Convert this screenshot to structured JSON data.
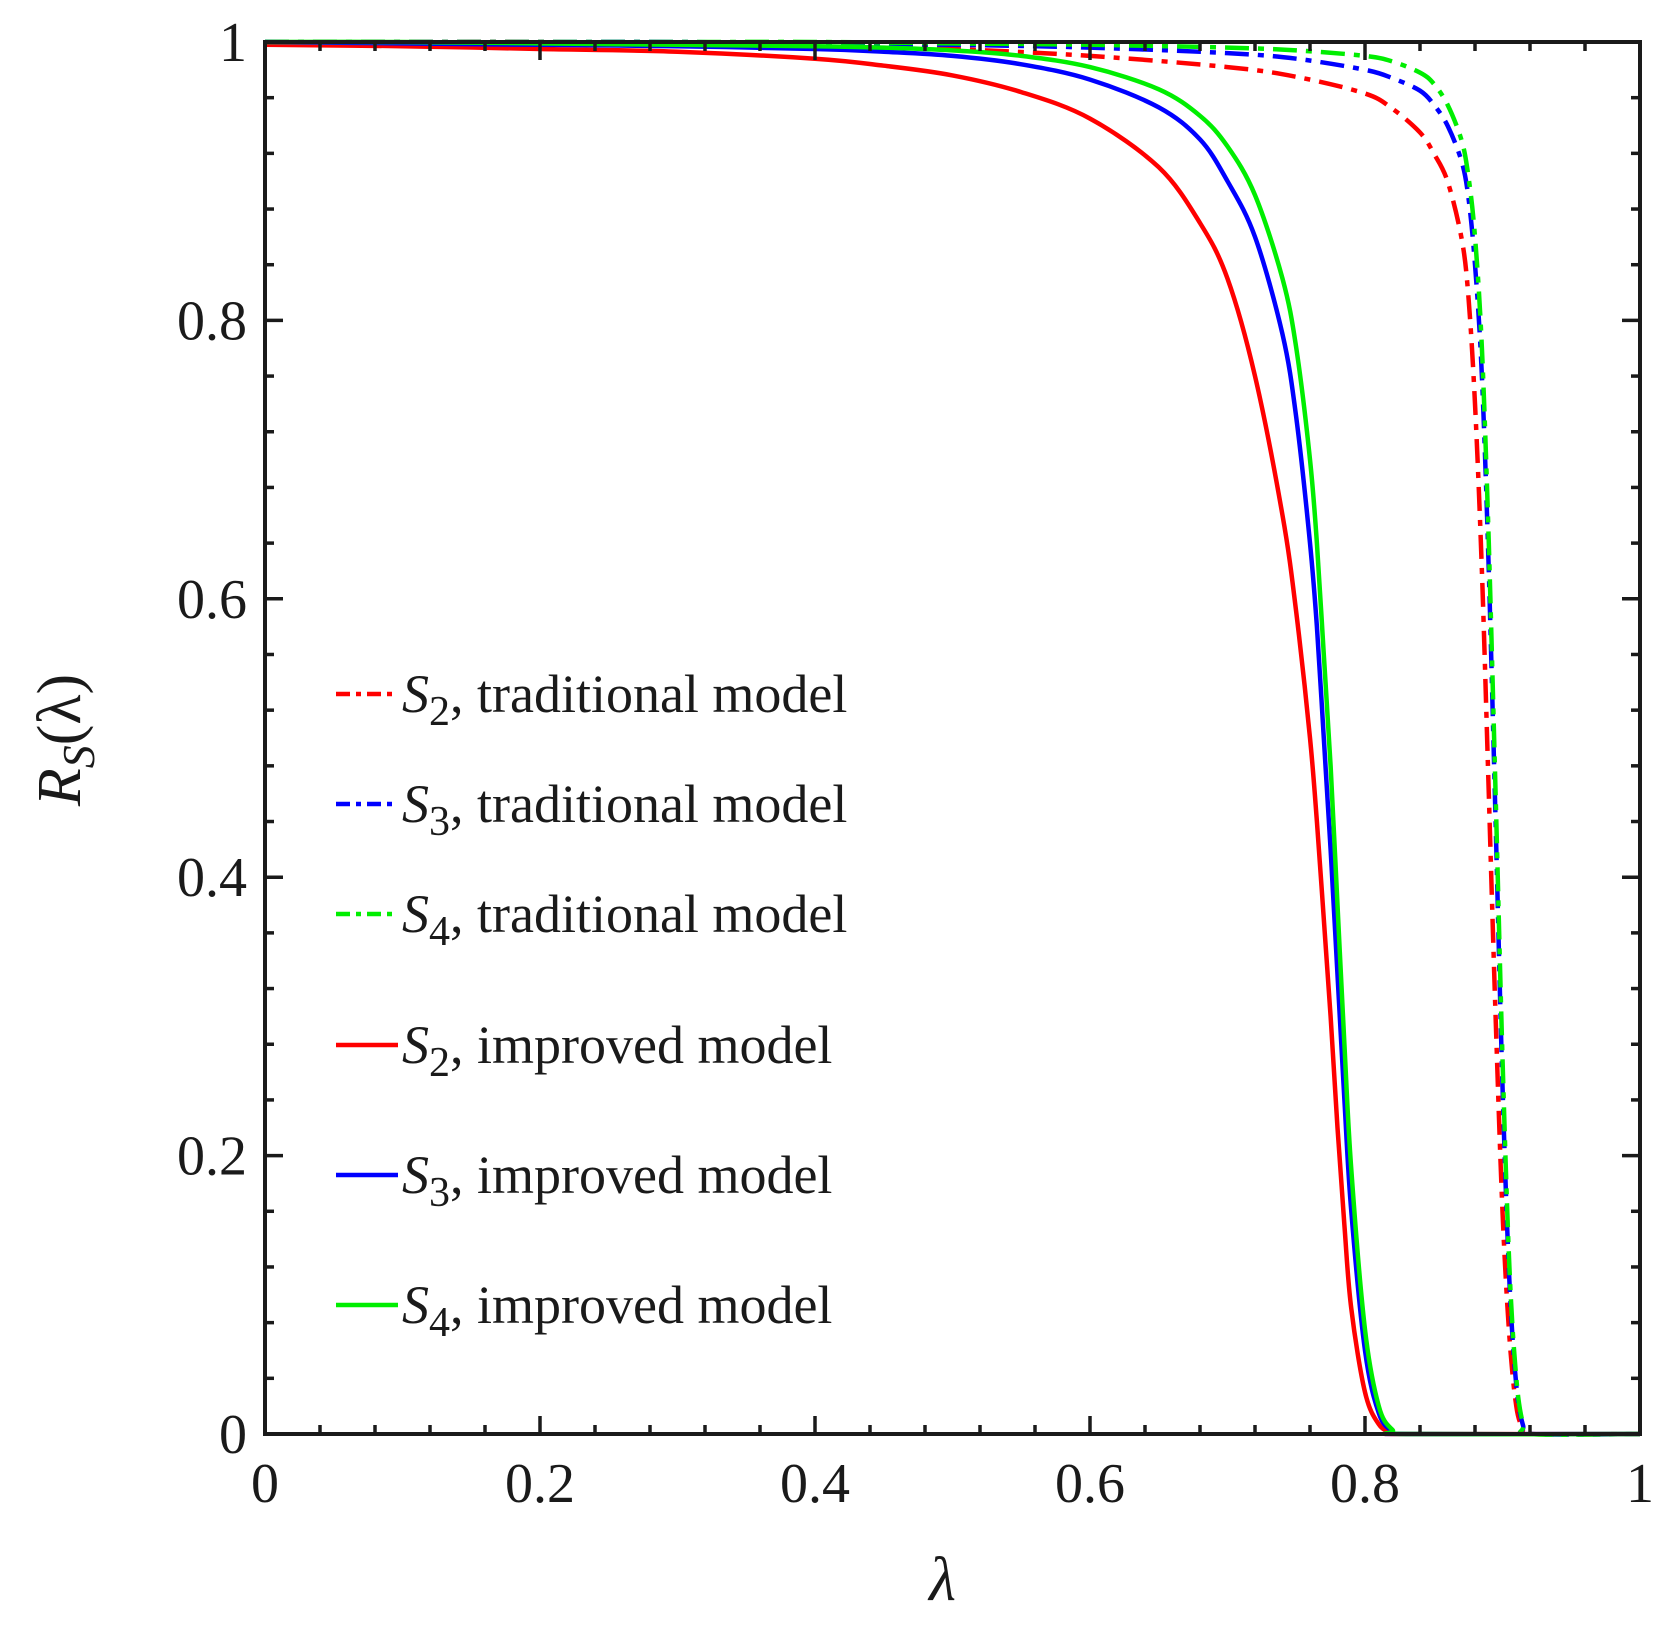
{
  "chart_data": {
    "type": "line",
    "title": "",
    "xlabel": "λ",
    "ylabel": "R",
    "ylabel_sub": "S",
    "ylabel_arg": "(λ)",
    "xlim": [
      0,
      1
    ],
    "ylim": [
      0,
      1
    ],
    "xticks": [
      0,
      0.2,
      0.4,
      0.6,
      0.8,
      1
    ],
    "yticks": [
      0,
      0.2,
      0.4,
      0.6,
      0.8,
      1
    ],
    "xtick_labels": [
      "0",
      "0.2",
      "0.4",
      "0.6",
      "0.8",
      "1"
    ],
    "ytick_labels": [
      "0",
      "0.2",
      "0.4",
      "0.6",
      "0.8",
      "1"
    ],
    "grid": false,
    "legend_position": "center-left",
    "series": [
      {
        "name": "S2, traditional model",
        "symbol": "S",
        "sub": "2",
        "text": ", traditional  model",
        "color": "#ff0000",
        "style": "dashdot",
        "x": [
          0,
          0.1,
          0.2,
          0.3,
          0.4,
          0.5,
          0.6,
          0.7,
          0.75,
          0.8,
          0.82,
          0.84,
          0.85,
          0.86,
          0.87,
          0.875,
          0.88,
          0.885,
          0.89,
          0.895,
          0.9,
          0.905,
          0.91,
          0.915,
          0.92,
          1.0
        ],
        "y": [
          1.0,
          1.0,
          1.0,
          0.999,
          0.998,
          0.995,
          0.99,
          0.982,
          0.975,
          0.963,
          0.952,
          0.935,
          0.92,
          0.9,
          0.86,
          0.82,
          0.74,
          0.62,
          0.46,
          0.3,
          0.16,
          0.07,
          0.02,
          0.004,
          0.0,
          0.0
        ]
      },
      {
        "name": "S3, traditional model",
        "symbol": "S",
        "sub": "3",
        "text": ", traditional  model",
        "color": "#0000ff",
        "style": "dashdot",
        "x": [
          0,
          0.1,
          0.2,
          0.3,
          0.4,
          0.5,
          0.6,
          0.7,
          0.75,
          0.8,
          0.82,
          0.84,
          0.85,
          0.86,
          0.87,
          0.875,
          0.88,
          0.885,
          0.89,
          0.895,
          0.9,
          0.905,
          0.91,
          0.915,
          0.92,
          1.0
        ],
        "y": [
          1.0,
          1.0,
          1.0,
          1.0,
          0.999,
          0.998,
          0.996,
          0.992,
          0.988,
          0.98,
          0.974,
          0.965,
          0.955,
          0.94,
          0.915,
          0.89,
          0.84,
          0.76,
          0.62,
          0.44,
          0.25,
          0.11,
          0.035,
          0.006,
          0.0,
          0.0
        ]
      },
      {
        "name": "S4, traditional model",
        "symbol": "S",
        "sub": "4",
        "text": ", traditional  model",
        "color": "#00ee00",
        "style": "dashdot",
        "x": [
          0,
          0.1,
          0.2,
          0.3,
          0.4,
          0.5,
          0.6,
          0.7,
          0.75,
          0.8,
          0.82,
          0.84,
          0.85,
          0.86,
          0.87,
          0.875,
          0.88,
          0.885,
          0.89,
          0.895,
          0.9,
          0.905,
          0.91,
          0.915,
          0.92,
          1.0
        ],
        "y": [
          1.0,
          1.0,
          1.0,
          1.0,
          1.0,
          0.999,
          0.998,
          0.996,
          0.994,
          0.99,
          0.986,
          0.978,
          0.97,
          0.955,
          0.93,
          0.905,
          0.86,
          0.78,
          0.64,
          0.46,
          0.27,
          0.12,
          0.04,
          0.007,
          0.0,
          0.0
        ]
      },
      {
        "name": "S2, improved model",
        "symbol": "S",
        "sub": "2",
        "text": ", improved  model",
        "color": "#ff0000",
        "style": "solid",
        "x": [
          0,
          0.1,
          0.2,
          0.3,
          0.4,
          0.45,
          0.5,
          0.55,
          0.6,
          0.65,
          0.68,
          0.7,
          0.72,
          0.74,
          0.75,
          0.76,
          0.765,
          0.77,
          0.775,
          0.78,
          0.785,
          0.79,
          0.8,
          0.81,
          0.82,
          0.83,
          1.0
        ],
        "y": [
          0.998,
          0.997,
          0.995,
          0.993,
          0.988,
          0.983,
          0.976,
          0.964,
          0.945,
          0.91,
          0.87,
          0.83,
          0.76,
          0.66,
          0.59,
          0.5,
          0.44,
          0.37,
          0.3,
          0.22,
          0.15,
          0.09,
          0.03,
          0.007,
          0.001,
          0.0,
          0.0
        ]
      },
      {
        "name": "S3, improved model",
        "symbol": "S",
        "sub": "3",
        "text": ", improved  model",
        "color": "#0000ff",
        "style": "solid",
        "x": [
          0,
          0.1,
          0.2,
          0.3,
          0.4,
          0.45,
          0.5,
          0.55,
          0.6,
          0.65,
          0.68,
          0.7,
          0.72,
          0.74,
          0.75,
          0.76,
          0.765,
          0.77,
          0.775,
          0.78,
          0.785,
          0.79,
          0.8,
          0.81,
          0.82,
          0.83,
          1.0
        ],
        "y": [
          1.0,
          0.999,
          0.998,
          0.997,
          0.995,
          0.993,
          0.99,
          0.984,
          0.973,
          0.953,
          0.93,
          0.9,
          0.86,
          0.79,
          0.73,
          0.64,
          0.58,
          0.5,
          0.42,
          0.33,
          0.24,
          0.16,
          0.06,
          0.015,
          0.002,
          0.0,
          0.0
        ]
      },
      {
        "name": "S4, improved model",
        "symbol": "S",
        "sub": "4",
        "text": ", improved  model",
        "color": "#00ee00",
        "style": "solid",
        "x": [
          0,
          0.1,
          0.2,
          0.3,
          0.4,
          0.45,
          0.5,
          0.55,
          0.6,
          0.65,
          0.68,
          0.7,
          0.72,
          0.74,
          0.75,
          0.76,
          0.765,
          0.77,
          0.775,
          0.78,
          0.785,
          0.79,
          0.8,
          0.81,
          0.82,
          0.83,
          1.0
        ],
        "y": [
          1.0,
          1.0,
          0.999,
          0.998,
          0.997,
          0.996,
          0.994,
          0.99,
          0.982,
          0.966,
          0.947,
          0.925,
          0.89,
          0.83,
          0.78,
          0.7,
          0.64,
          0.56,
          0.48,
          0.38,
          0.28,
          0.19,
          0.075,
          0.02,
          0.003,
          0.0,
          0.0
        ]
      }
    ]
  }
}
